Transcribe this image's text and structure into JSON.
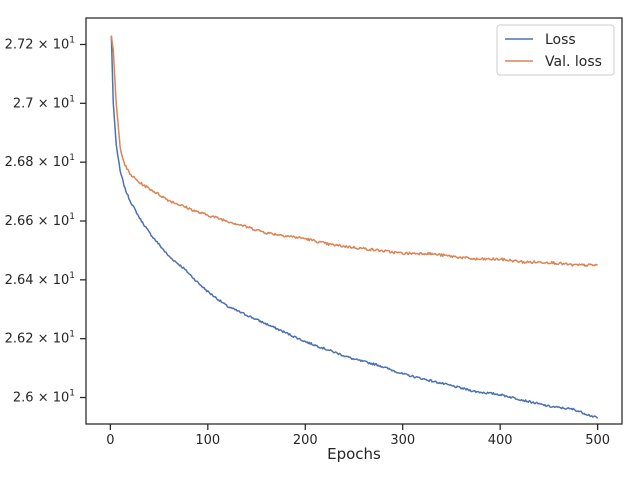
{
  "chart_data": {
    "type": "line",
    "title": "",
    "xlabel": "Epochs",
    "ylabel": "",
    "xlim": [
      -25,
      525
    ],
    "ylim": [
      25.91,
      27.29
    ],
    "xticks": [
      0,
      100,
      200,
      300,
      400,
      500
    ],
    "xtick_labels": [
      "0",
      "100",
      "200",
      "300",
      "400",
      "500"
    ],
    "yticks": [
      26.0,
      26.2,
      26.4,
      26.6,
      26.8,
      27.0,
      27.2
    ],
    "ytick_labels": [
      {
        "mantissa": "2.6",
        "base": "10",
        "exp": "1"
      },
      {
        "mantissa": "2.62",
        "base": "10",
        "exp": "1"
      },
      {
        "mantissa": "2.64",
        "base": "10",
        "exp": "1"
      },
      {
        "mantissa": "2.66",
        "base": "10",
        "exp": "1"
      },
      {
        "mantissa": "2.68",
        "base": "10",
        "exp": "1"
      },
      {
        "mantissa": "2.7",
        "base": "10",
        "exp": "1"
      },
      {
        "mantissa": "2.72",
        "base": "10",
        "exp": "1"
      }
    ],
    "grid": false,
    "legend": {
      "placement": "top-right"
    },
    "x": [
      1,
      3,
      6,
      10,
      15,
      20,
      30,
      40,
      50,
      60,
      75,
      90,
      100,
      120,
      140,
      160,
      180,
      200,
      225,
      250,
      275,
      300,
      325,
      350,
      375,
      400,
      425,
      450,
      475,
      500
    ],
    "series": [
      {
        "name": "Loss",
        "color": "#4c72b0",
        "values": [
          27.23,
          27.0,
          26.86,
          26.77,
          26.71,
          26.67,
          26.61,
          26.56,
          26.52,
          26.48,
          26.44,
          26.39,
          26.36,
          26.31,
          26.28,
          26.25,
          26.22,
          26.19,
          26.16,
          26.13,
          26.11,
          26.08,
          26.06,
          26.04,
          26.02,
          26.01,
          25.99,
          25.97,
          25.96,
          25.93
        ]
      },
      {
        "name": "Val. loss",
        "color": "#dd8452",
        "values": [
          27.23,
          27.18,
          27.0,
          26.85,
          26.79,
          26.76,
          26.73,
          26.71,
          26.69,
          26.67,
          26.65,
          26.63,
          26.62,
          26.6,
          26.58,
          26.56,
          26.55,
          26.54,
          26.52,
          26.51,
          26.5,
          26.49,
          26.49,
          26.48,
          26.47,
          26.47,
          26.46,
          26.46,
          26.45,
          26.45
        ]
      }
    ]
  }
}
